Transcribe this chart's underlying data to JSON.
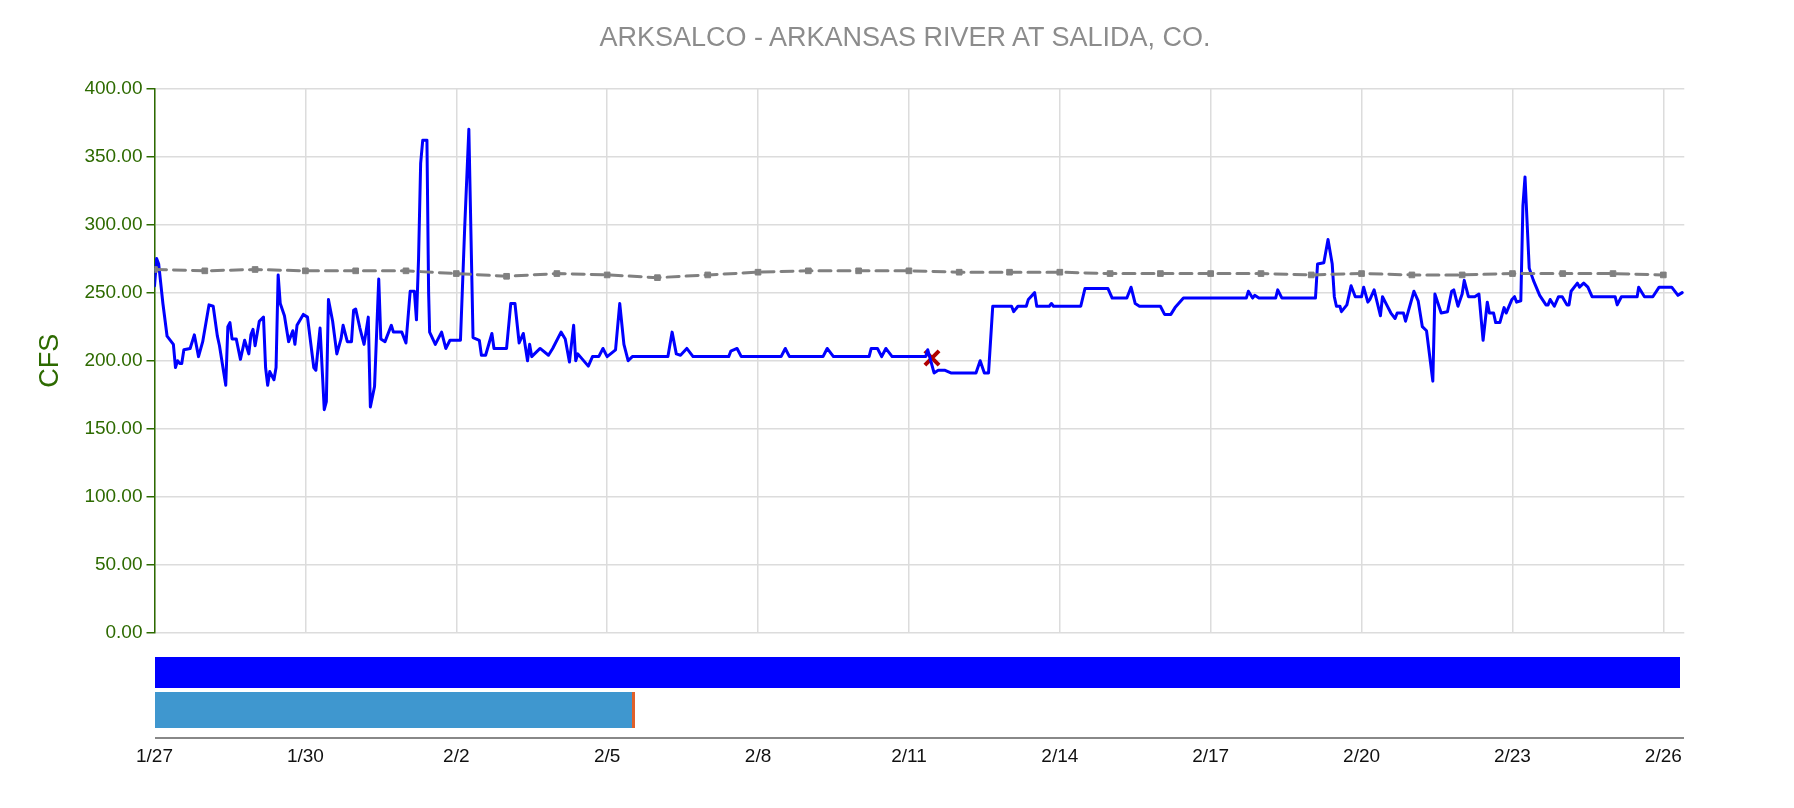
{
  "chart_data": {
    "type": "line",
    "title": "ARKSALCO - ARKANSAS RIVER AT SALIDA, CO.",
    "ylabel": "CFS",
    "xlim": [
      "--01-27",
      "--02-26T10:00"
    ],
    "xticks": [
      {
        "value": "--01-27",
        "label": "1/27"
      },
      {
        "value": "--01-30",
        "label": "1/30"
      },
      {
        "value": "--02-02",
        "label": "2/2"
      },
      {
        "value": "--02-05",
        "label": "2/5"
      },
      {
        "value": "--02-08",
        "label": "2/8"
      },
      {
        "value": "--02-11",
        "label": "2/11"
      },
      {
        "value": "--02-14",
        "label": "2/14"
      },
      {
        "value": "--02-17",
        "label": "2/17"
      },
      {
        "value": "--02-20",
        "label": "2/20"
      },
      {
        "value": "--02-23",
        "label": "2/23"
      },
      {
        "value": "--02-26",
        "label": "2/26"
      }
    ],
    "ylim": [
      0,
      400
    ],
    "yticks": [
      {
        "value": 0,
        "label": "0.00"
      },
      {
        "value": 50,
        "label": "50.00"
      },
      {
        "value": 100,
        "label": "100.00"
      },
      {
        "value": 150,
        "label": "150.00"
      },
      {
        "value": 200,
        "label": "200.00"
      },
      {
        "value": 250,
        "label": "250.00"
      },
      {
        "value": 300,
        "label": "300.00"
      },
      {
        "value": 350,
        "label": "350.00"
      },
      {
        "value": 400,
        "label": "400.00"
      }
    ],
    "grid": true,
    "series": [
      {
        "color": "#808080",
        "marker": "square",
        "line_style": "dashed",
        "x": [
          "--01-27",
          "--01-28",
          "--01-29",
          "--01-30",
          "--01-31",
          "--02-01",
          "--02-02",
          "--02-03",
          "--02-04",
          "--02-05",
          "--02-06",
          "--02-07",
          "--02-08",
          "--02-09",
          "--02-10",
          "--02-11",
          "--02-12",
          "--02-13",
          "--02-14",
          "--02-15",
          "--02-16",
          "--02-17",
          "--02-18",
          "--02-19",
          "--02-20",
          "--02-21",
          "--02-22",
          "--02-23",
          "--02-24",
          "--02-25",
          "--02-26"
        ],
        "values": [
          267,
          266,
          267,
          266,
          266,
          266,
          264,
          262,
          264,
          263,
          261,
          263,
          265,
          266,
          266,
          266,
          265,
          265,
          265,
          264,
          264,
          264,
          264,
          263,
          264,
          263,
          263,
          264,
          264,
          264,
          263
        ]
      },
      {
        "color": "#0000ff",
        "marker": "none",
        "line_style": "solid",
        "x": [
          "--01-27T00:00",
          "--01-27T01:00",
          "--01-27T02:00",
          "--01-27T04:00",
          "--01-27T06:00",
          "--01-27T09:00",
          "--01-27T10:00",
          "--01-27T11:00",
          "--01-27T12:00",
          "--01-27T13:00",
          "--01-27T14:00",
          "--01-27T17:00",
          "--01-27T19:00",
          "--01-27T21:00",
          "--01-27T23:00",
          "--01-28T02:00",
          "--01-28T04:00",
          "--01-28T06:00",
          "--01-28T07:00",
          "--01-28T10:00",
          "--01-28T11:00",
          "--01-28T12:00",
          "--01-28T13:00",
          "--01-28T15:00",
          "--01-28T17:00",
          "--01-28T19:00",
          "--01-28T21:00",
          "--01-28T22:00",
          "--01-28T23:00",
          "--01-29T00:00",
          "--01-29T02:00",
          "--01-29T04:00",
          "--01-29T05:00",
          "--01-29T06:00",
          "--01-29T07:00",
          "--01-29T09:00",
          "--01-29T10:00",
          "--01-29T11:00",
          "--01-29T12:00",
          "--01-29T14:00",
          "--01-29T16:00",
          "--01-29T18:00",
          "--01-29T19:00",
          "--01-29T20:00",
          "--01-29T23:00",
          "--01-30T01:00",
          "--01-30T04:00",
          "--01-30T05:00",
          "--01-30T07:00",
          "--01-30T09:00",
          "--01-30T10:00",
          "--01-30T11:00",
          "--01-30T13:00",
          "--01-30T15:00",
          "--01-30T17:00",
          "--01-30T18:00",
          "--01-30T20:00",
          "--01-30T22:00",
          "--01-30T23:00",
          "--01-31T00:00",
          "--01-31T02:00",
          "--01-31T04:00",
          "--01-31T06:00",
          "--01-31T07:00",
          "--01-31T09:00",
          "--01-31T11:00",
          "--01-31T12:00",
          "--01-31T14:00",
          "--01-31T17:00",
          "--01-31T18:00",
          "--01-31T22:00",
          "--02-01T00:00",
          "--02-01T02:00",
          "--02-01T04:00",
          "--02-01T05:00",
          "--02-01T06:00",
          "--02-01T07:00",
          "--02-01T08:00",
          "--02-01T10:00",
          "--02-01T10:48",
          "--02-01T11:17",
          "--02-01T14:00",
          "--02-01T17:00",
          "--02-01T19:00",
          "--02-01T21:00",
          "--02-02T02:00",
          "--02-02T04:00",
          "--02-02T06:00",
          "--02-02T08:00",
          "--02-02T11:00",
          "--02-02T12:00",
          "--02-02T14:00",
          "--02-02T17:00",
          "--02-02T18:00",
          "--02-03T00:00",
          "--02-03T02:00",
          "--02-03T04:00",
          "--02-03T06:00",
          "--02-03T08:00",
          "--02-03T10:00",
          "--02-03T11:00",
          "--02-03T12:00",
          "--02-03T16:00",
          "--02-03T20:00",
          "--02-03T22:00",
          "--02-04T02:00",
          "--02-04T04:00",
          "--02-04T06:00",
          "--02-04T08:00",
          "--02-04T09:00",
          "--02-04T10:00",
          "--02-04T15:00",
          "--02-04T17:00",
          "--02-04T20:00",
          "--02-04T22:00",
          "--02-05T00:00",
          "--02-05T04:00",
          "--02-05T06:00",
          "--02-05T08:00",
          "--02-05T10:00",
          "--02-05T12:00",
          "--02-06T05:00",
          "--02-06T07:00",
          "--02-06T09:00",
          "--02-06T11:00",
          "--02-06T14:00",
          "--02-06T17:00",
          "--02-07T10:00",
          "--02-07T11:00",
          "--02-07T14:00",
          "--02-07T16:00",
          "--02-08T11:00",
          "--02-08T13:00",
          "--02-08T15:00",
          "--02-09T07:00",
          "--02-09T09:00",
          "--02-09T12:00",
          "--02-10T05:00",
          "--02-10T06:00",
          "--02-10T09:00",
          "--02-10T11:00",
          "--02-10T13:00",
          "--02-10T16:00",
          "--02-11T08:00",
          "--02-11T09:00",
          "--02-11T12:00",
          "--02-11T14:00",
          "--02-11T17:00",
          "--02-11T20:00",
          "--02-12T08:00",
          "--02-12T10:00",
          "--02-12T12:00",
          "--02-12T14:00",
          "--02-12T16:00",
          "--02-13T01:00",
          "--02-13T02:00",
          "--02-13T04:00",
          "--02-13T08:00",
          "--02-13T09:00",
          "--02-13T12:00",
          "--02-13T13:00",
          "--02-13T19:00",
          "--02-13T20:00",
          "--02-13T21:00",
          "--02-14T10:00",
          "--02-14T12:00",
          "--02-14T23:00",
          "--02-15T01:00",
          "--02-15T08:00",
          "--02-15T10:00",
          "--02-15T12:00",
          "--02-15T14:00",
          "--02-16T00:00",
          "--02-16T02:00",
          "--02-16T05:00",
          "--02-16T07:00",
          "--02-16T11:00",
          "--02-17T17:00",
          "--02-17T18:00",
          "--02-17T20:00",
          "--02-17T21:00",
          "--02-17T23:00",
          "--02-18T07:00",
          "--02-18T08:00",
          "--02-18T10:00",
          "--02-19T02:00",
          "--02-19T03:00",
          "--02-19T06:00",
          "--02-19T08:00",
          "--02-19T10:00",
          "--02-19T11:00",
          "--02-19T12:00",
          "--02-19T13:41",
          "--02-19T14:24",
          "--02-19T17:00",
          "--02-19T19:00",
          "--02-19T21:00",
          "--02-20T00:00",
          "--02-20T01:00",
          "--02-20T03:00",
          "--02-20T04:00",
          "--02-20T06:00",
          "--02-20T09:00",
          "--02-20T10:00",
          "--02-20T12:00",
          "--02-20T14:00",
          "--02-20T16:00",
          "--02-20T17:00",
          "--02-20T20:00",
          "--02-20T21:00",
          "--02-21T01:00",
          "--02-21T03:00",
          "--02-21T05:00",
          "--02-21T07:00",
          "--02-21T10:00",
          "--02-21T11:00",
          "--02-21T14:00",
          "--02-21T17:00",
          "--02-21T19:00",
          "--02-21T20:00",
          "--02-21T22:00",
          "--02-22T00:00",
          "--02-22T01:00",
          "--02-22T03:00",
          "--02-22T06:00",
          "--02-22T08:00",
          "--02-22T10:00",
          "--02-22T12:00",
          "--02-22T13:00",
          "--02-22T15:00",
          "--02-22T16:00",
          "--02-22T18:00",
          "--02-22T20:00",
          "--02-22T21:00",
          "--02-22T23:46",
          "--02-23T01:00",
          "--02-23T02:00",
          "--02-23T04:00",
          "--02-23T05:00",
          "--02-23T06:00",
          "--02-23T08:00",
          "--02-23T10:00",
          "--02-23T13:00",
          "--02-23T16:00",
          "--02-23T17:00",
          "--02-23T18:00",
          "--02-23T20:00",
          "--02-23T22:00",
          "--02-23T23:46",
          "--02-24T02:00",
          "--02-24T03:00",
          "--02-24T04:00",
          "--02-24T07:00",
          "--02-24T08:00",
          "--02-24T10:00",
          "--02-24T12:00",
          "--02-24T14:00",
          "--02-25T01:00",
          "--02-25T02:00",
          "--02-25T04:00",
          "--02-25T11:31",
          "--02-25T12:14",
          "--02-25T15:00",
          "--02-25T19:00",
          "--02-25T22:00",
          "--02-25T23:00",
          "--02-26T04:00",
          "--02-26T07:00",
          "--02-26T09:00"
        ],
        "values": [
          255,
          275,
          271,
          242,
          218,
          212,
          195,
          200,
          198,
          198,
          208,
          209,
          219,
          203,
          214,
          241,
          240,
          218,
          211,
          182,
          225,
          228,
          216,
          216,
          201,
          215,
          205,
          219,
          223,
          211,
          229,
          232,
          195,
          182,
          192,
          186,
          195,
          263,
          242,
          233,
          214,
          222,
          212,
          226,
          234,
          232,
          195,
          193,
          224,
          164,
          170,
          245,
          229,
          205,
          216,
          226,
          214,
          214,
          237,
          238,
          224,
          212,
          232,
          166,
          181,
          260,
          216,
          214,
          226,
          221,
          221,
          213,
          251,
          251,
          230,
          275,
          345,
          362,
          362,
          250,
          221,
          212,
          221,
          209,
          215,
          215,
          297,
          370,
          217,
          215,
          204,
          204,
          220,
          209,
          209,
          242,
          242,
          213,
          220,
          200,
          212,
          203,
          209,
          204,
          209,
          221,
          216,
          199,
          226,
          200,
          205,
          196,
          203,
          203,
          209,
          203,
          208,
          242,
          212,
          200,
          203,
          203,
          221,
          205,
          204,
          209,
          203,
          203,
          207,
          209,
          203,
          203,
          209,
          203,
          203,
          209,
          203,
          203,
          209,
          209,
          203,
          209,
          203,
          203,
          208,
          191,
          193,
          193,
          191,
          191,
          200,
          191,
          191,
          240,
          240,
          236,
          240,
          240,
          245,
          250,
          240,
          240,
          242,
          240,
          240,
          253,
          253,
          246,
          246,
          254,
          242,
          240,
          240,
          234,
          234,
          239,
          246,
          246,
          251,
          246,
          248,
          246,
          246,
          252,
          246,
          246,
          271,
          272,
          289,
          271,
          247,
          240,
          240,
          236,
          241,
          255,
          247,
          247,
          254,
          243,
          245,
          252,
          233,
          247,
          241,
          235,
          231,
          235,
          235,
          229,
          251,
          244,
          225,
          222,
          185,
          249,
          235,
          236,
          251,
          252,
          240,
          249,
          259,
          247,
          247,
          249,
          215,
          243,
          235,
          235,
          228,
          228,
          239,
          235,
          245,
          247,
          243,
          244,
          314,
          335,
          268,
          259,
          248,
          241,
          241,
          245,
          240,
          247,
          247,
          241,
          241,
          251,
          257,
          254,
          257,
          254,
          247,
          247,
          241,
          247,
          247,
          254,
          247,
          247,
          254,
          254,
          254,
          248,
          250
        ]
      },
      {
        "type": "scatter",
        "color": "#b00000",
        "marker": "cross",
        "x": [
          "--02-11T11:00"
        ],
        "values": [
          202
        ]
      }
    ]
  }
}
